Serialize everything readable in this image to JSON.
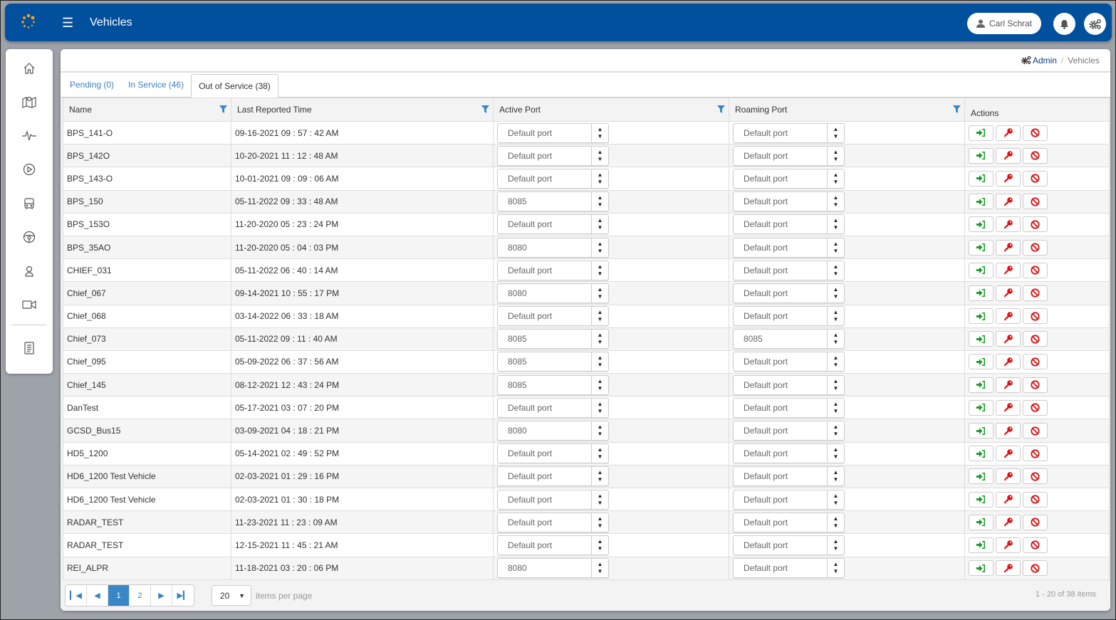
{
  "header": {
    "title": "Vehicles",
    "user": "Carl Schrat"
  },
  "breadcrumb": {
    "admin": "Admin",
    "current": "Vehicles",
    "separator": "/"
  },
  "tabs": [
    {
      "label": "Pending (0)"
    },
    {
      "label": "In Service (46)"
    },
    {
      "label": "Out of Service (38)",
      "active": true
    }
  ],
  "columns": {
    "name": "Name",
    "time": "Last Reported Time",
    "active": "Active Port",
    "roaming": "Roaming Port",
    "actions": "Actions"
  },
  "rows": [
    [
      "BPS_141-O",
      "09-16-2021 09 : 57 : 42 AM",
      "Default port",
      "Default port"
    ],
    [
      "BPS_142O",
      "10-20-2021 11 : 12 : 48 AM",
      "Default port",
      "Default port"
    ],
    [
      "BPS_143-O",
      "10-01-2021 09 : 09 : 06 AM",
      "Default port",
      "Default port"
    ],
    [
      "BPS_150",
      "05-11-2022 09 : 33 : 48 AM",
      "8085",
      "Default port"
    ],
    [
      "BPS_153O",
      "11-20-2020 05 : 23 : 24 PM",
      "Default port",
      "Default port"
    ],
    [
      "BPS_35AO",
      "11-20-2020 05 : 04 : 03 PM",
      "8080",
      "Default port"
    ],
    [
      "CHIEF_031",
      "05-11-2022 06 : 40 : 14 AM",
      "Default port",
      "Default port"
    ],
    [
      "Chief_067",
      "09-14-2021 10 : 55 : 17 PM",
      "8080",
      "Default port"
    ],
    [
      "Chief_068",
      "03-14-2022 06 : 33 : 18 AM",
      "Default port",
      "Default port"
    ],
    [
      "Chief_073",
      "05-11-2022 09 : 11 : 40 AM",
      "8085",
      "8085"
    ],
    [
      "Chief_095",
      "05-09-2022 06 : 37 : 56 AM",
      "8085",
      "Default port"
    ],
    [
      "Chief_145",
      "08-12-2021 12 : 43 : 24 PM",
      "8085",
      "Default port"
    ],
    [
      "DanTest",
      "05-17-2021 03 : 07 : 20 PM",
      "Default port",
      "Default port"
    ],
    [
      "GCSD_Bus15",
      "03-09-2021 04 : 18 : 21 PM",
      "8080",
      "Default port"
    ],
    [
      "HD5_1200",
      "05-14-2021 02 : 49 : 52 PM",
      "Default port",
      "Default port"
    ],
    [
      "HD6_1200 Test Vehicle",
      "02-03-2021 01 : 29 : 16 PM",
      "Default port",
      "Default port"
    ],
    [
      "HD6_1200 Test Vehicle",
      "02-03-2021 01 : 30 : 18 PM",
      "Default port",
      "Default port"
    ],
    [
      "RADAR_TEST",
      "11-23-2021 11 : 23 : 09 AM",
      "Default port",
      "Default port"
    ],
    [
      "RADAR_TEST",
      "12-15-2021 11 : 45 : 21 AM",
      "Default port",
      "Default port"
    ],
    [
      "REI_ALPR",
      "11-18-2021 03 : 20 : 06 PM",
      "8080",
      "Default port"
    ]
  ],
  "pager": {
    "pages": [
      "1",
      "2"
    ],
    "current": "1",
    "page_size": "20",
    "items_label": "items per page",
    "summary": "1 - 20 of 38 items"
  },
  "colors": {
    "header": "#00509d",
    "accent": "#3a87c8",
    "login": "#1a9b2a",
    "key": "#e01010",
    "block": "#e01010"
  }
}
